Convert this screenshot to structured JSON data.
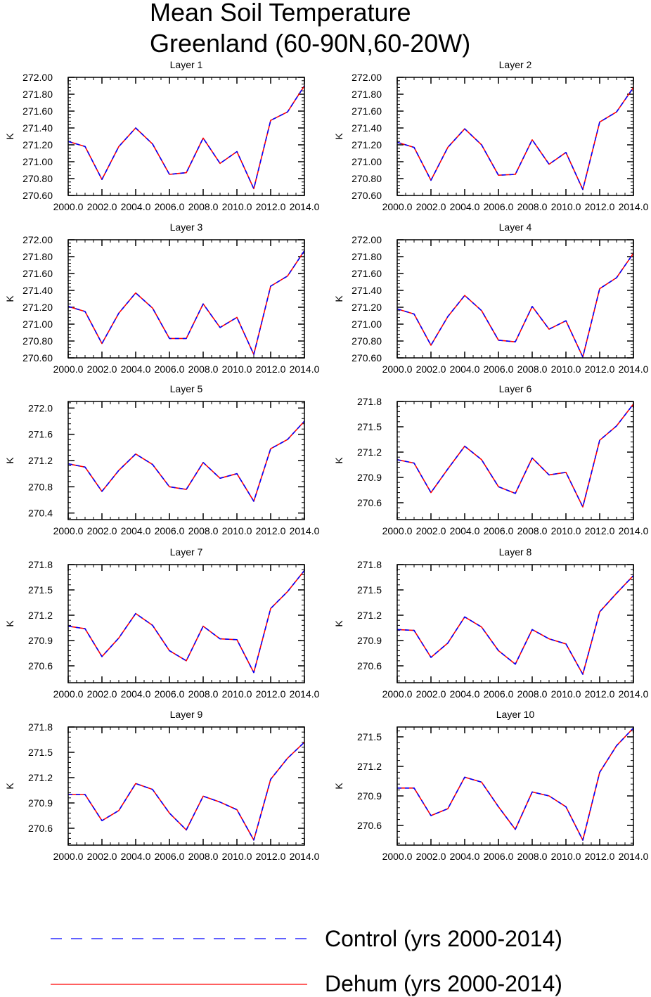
{
  "title_lines": [
    "Mean Soil Temperature",
    "Greenland (60-90N,60-20W)"
  ],
  "legend": [
    {
      "label": "Control (yrs 2000-2014)",
      "color": "#0000ff",
      "dash": true
    },
    {
      "label": "Dehum (yrs 2000-2014)",
      "color": "#ff0000",
      "dash": false
    }
  ],
  "chart_data": [
    {
      "type": "line",
      "title": "Layer 1",
      "ylabel": "K",
      "xlim": [
        2000,
        2014
      ],
      "ylim": [
        270.6,
        272.0
      ],
      "xticks": [
        "2000.0",
        "2002.0",
        "2004.0",
        "2006.0",
        "2008.0",
        "2010.0",
        "2012.0",
        "2014.0"
      ],
      "yticks": [
        "270.60",
        "270.80",
        "271.00",
        "271.20",
        "271.40",
        "271.60",
        "271.80",
        "272.00"
      ],
      "x": [
        2000,
        2001,
        2002,
        2003,
        2004,
        2005,
        2006,
        2007,
        2008,
        2009,
        2010,
        2011,
        2012,
        2013,
        2014
      ],
      "series": [
        {
          "name": "Control (yrs 2000-2014)",
          "values": [
            271.24,
            271.18,
            270.79,
            271.18,
            271.4,
            271.21,
            270.85,
            270.87,
            271.28,
            270.98,
            271.12,
            270.68,
            271.49,
            271.59,
            271.9
          ]
        },
        {
          "name": "Dehum (yrs 2000-2014)",
          "values": [
            271.24,
            271.18,
            270.79,
            271.18,
            271.4,
            271.21,
            270.85,
            270.87,
            271.28,
            270.98,
            271.12,
            270.68,
            271.49,
            271.59,
            271.9
          ]
        }
      ]
    },
    {
      "type": "line",
      "title": "Layer 2",
      "ylabel": "K",
      "xlim": [
        2000,
        2014
      ],
      "ylim": [
        270.6,
        272.0
      ],
      "xticks": [
        "2000.0",
        "2002.0",
        "2004.0",
        "2006.0",
        "2008.0",
        "2010.0",
        "2012.0",
        "2014.0"
      ],
      "yticks": [
        "270.60",
        "270.80",
        "271.00",
        "271.20",
        "271.40",
        "271.60",
        "271.80",
        "272.00"
      ],
      "x": [
        2000,
        2001,
        2002,
        2003,
        2004,
        2005,
        2006,
        2007,
        2008,
        2009,
        2010,
        2011,
        2012,
        2013,
        2014
      ],
      "series": [
        {
          "name": "Control (yrs 2000-2014)",
          "values": [
            271.23,
            271.17,
            270.78,
            271.17,
            271.39,
            271.2,
            270.84,
            270.85,
            271.26,
            270.97,
            271.11,
            270.67,
            271.47,
            271.59,
            271.88
          ]
        },
        {
          "name": "Dehum (yrs 2000-2014)",
          "values": [
            271.23,
            271.17,
            270.78,
            271.17,
            271.39,
            271.2,
            270.84,
            270.85,
            271.26,
            270.97,
            271.11,
            270.67,
            271.47,
            271.59,
            271.88
          ]
        }
      ]
    },
    {
      "type": "line",
      "title": "Layer 3",
      "ylabel": "K",
      "xlim": [
        2000,
        2014
      ],
      "ylim": [
        270.6,
        272.0
      ],
      "xticks": [
        "2000.0",
        "2002.0",
        "2004.0",
        "2006.0",
        "2008.0",
        "2010.0",
        "2012.0",
        "2014.0"
      ],
      "yticks": [
        "270.60",
        "270.80",
        "271.00",
        "271.20",
        "271.40",
        "271.60",
        "271.80",
        "272.00"
      ],
      "x": [
        2000,
        2001,
        2002,
        2003,
        2004,
        2005,
        2006,
        2007,
        2008,
        2009,
        2010,
        2011,
        2012,
        2013,
        2014
      ],
      "series": [
        {
          "name": "Control (yrs 2000-2014)",
          "values": [
            271.21,
            271.15,
            270.77,
            271.13,
            271.37,
            271.19,
            270.83,
            270.83,
            271.24,
            270.96,
            271.08,
            270.64,
            271.45,
            271.57,
            271.87
          ]
        },
        {
          "name": "Dehum (yrs 2000-2014)",
          "values": [
            271.21,
            271.15,
            270.77,
            271.13,
            271.37,
            271.19,
            270.83,
            270.83,
            271.24,
            270.96,
            271.08,
            270.64,
            271.45,
            271.57,
            271.87
          ]
        }
      ]
    },
    {
      "type": "line",
      "title": "Layer 4",
      "ylabel": "K",
      "xlim": [
        2000,
        2014
      ],
      "ylim": [
        270.6,
        272.0
      ],
      "xticks": [
        "2000.0",
        "2002.0",
        "2004.0",
        "2006.0",
        "2008.0",
        "2010.0",
        "2012.0",
        "2014.0"
      ],
      "yticks": [
        "270.60",
        "270.80",
        "271.00",
        "271.20",
        "271.40",
        "271.60",
        "271.80",
        "272.00"
      ],
      "x": [
        2000,
        2001,
        2002,
        2003,
        2004,
        2005,
        2006,
        2007,
        2008,
        2009,
        2010,
        2011,
        2012,
        2013,
        2014
      ],
      "series": [
        {
          "name": "Control (yrs 2000-2014)",
          "values": [
            271.18,
            271.12,
            270.75,
            271.09,
            271.34,
            271.16,
            270.81,
            270.79,
            271.21,
            270.94,
            271.04,
            270.61,
            271.42,
            271.55,
            271.84
          ]
        },
        {
          "name": "Dehum (yrs 2000-2014)",
          "values": [
            271.18,
            271.12,
            270.75,
            271.09,
            271.34,
            271.16,
            270.81,
            270.79,
            271.21,
            270.94,
            271.04,
            270.61,
            271.42,
            271.55,
            271.84
          ]
        }
      ]
    },
    {
      "type": "line",
      "title": "Layer 5",
      "ylabel": "K",
      "xlim": [
        2000,
        2014
      ],
      "ylim": [
        270.3,
        272.1
      ],
      "xticks": [
        "2000.0",
        "2002.0",
        "2004.0",
        "2006.0",
        "2008.0",
        "2010.0",
        "2012.0",
        "2014.0"
      ],
      "yticks": [
        "270.4",
        "270.8",
        "271.2",
        "271.6",
        "272.0"
      ],
      "x": [
        2000,
        2001,
        2002,
        2003,
        2004,
        2005,
        2006,
        2007,
        2008,
        2009,
        2010,
        2011,
        2012,
        2013,
        2014
      ],
      "series": [
        {
          "name": "Control (yrs 2000-2014)",
          "values": [
            271.15,
            271.1,
            270.73,
            271.05,
            271.3,
            271.14,
            270.8,
            270.76,
            271.17,
            270.93,
            271.0,
            270.58,
            271.38,
            271.52,
            271.8
          ]
        },
        {
          "name": "Dehum (yrs 2000-2014)",
          "values": [
            271.15,
            271.1,
            270.73,
            271.05,
            271.3,
            271.14,
            270.8,
            270.76,
            271.17,
            270.93,
            271.0,
            270.58,
            271.38,
            271.52,
            271.8
          ]
        }
      ]
    },
    {
      "type": "line",
      "title": "Layer 6",
      "ylabel": "K",
      "xlim": [
        2000,
        2014
      ],
      "ylim": [
        270.4,
        271.8
      ],
      "xticks": [
        "2000.0",
        "2002.0",
        "2004.0",
        "2006.0",
        "2008.0",
        "2010.0",
        "2012.0",
        "2014.0"
      ],
      "yticks": [
        "270.6",
        "270.9",
        "271.2",
        "271.5",
        "271.8"
      ],
      "x": [
        2000,
        2001,
        2002,
        2003,
        2004,
        2005,
        2006,
        2007,
        2008,
        2009,
        2010,
        2011,
        2012,
        2013,
        2014
      ],
      "series": [
        {
          "name": "Control (yrs 2000-2014)",
          "values": [
            271.11,
            271.07,
            270.72,
            271.0,
            271.27,
            271.11,
            270.79,
            270.71,
            271.13,
            270.93,
            270.96,
            270.55,
            271.34,
            271.51,
            271.77
          ]
        },
        {
          "name": "Dehum (yrs 2000-2014)",
          "values": [
            271.11,
            271.07,
            270.72,
            271.0,
            271.27,
            271.11,
            270.79,
            270.71,
            271.13,
            270.93,
            270.96,
            270.55,
            271.34,
            271.51,
            271.77
          ]
        }
      ]
    },
    {
      "type": "line",
      "title": "Layer 7",
      "ylabel": "K",
      "xlim": [
        2000,
        2014
      ],
      "ylim": [
        270.4,
        271.8
      ],
      "xticks": [
        "2000.0",
        "2002.0",
        "2004.0",
        "2006.0",
        "2008.0",
        "2010.0",
        "2012.0",
        "2014.0"
      ],
      "yticks": [
        "270.6",
        "270.9",
        "271.2",
        "271.5",
        "271.8"
      ],
      "x": [
        2000,
        2001,
        2002,
        2003,
        2004,
        2005,
        2006,
        2007,
        2008,
        2009,
        2010,
        2011,
        2012,
        2013,
        2014
      ],
      "series": [
        {
          "name": "Control (yrs 2000-2014)",
          "values": [
            271.07,
            271.04,
            270.71,
            270.93,
            271.22,
            271.08,
            270.78,
            270.66,
            271.07,
            270.92,
            270.91,
            270.52,
            271.28,
            271.48,
            271.73
          ]
        },
        {
          "name": "Dehum (yrs 2000-2014)",
          "values": [
            271.07,
            271.04,
            270.71,
            270.93,
            271.22,
            271.08,
            270.78,
            270.66,
            271.07,
            270.92,
            270.91,
            270.52,
            271.28,
            271.48,
            271.73
          ]
        }
      ]
    },
    {
      "type": "line",
      "title": "Layer 8",
      "ylabel": "K",
      "xlim": [
        2000,
        2014
      ],
      "ylim": [
        270.4,
        271.8
      ],
      "xticks": [
        "2000.0",
        "2002.0",
        "2004.0",
        "2006.0",
        "2008.0",
        "2010.0",
        "2012.0",
        "2014.0"
      ],
      "yticks": [
        "270.6",
        "270.9",
        "271.2",
        "271.5",
        "271.8"
      ],
      "x": [
        2000,
        2001,
        2002,
        2003,
        2004,
        2005,
        2006,
        2007,
        2008,
        2009,
        2010,
        2011,
        2012,
        2013,
        2014
      ],
      "series": [
        {
          "name": "Control (yrs 2000-2014)",
          "values": [
            271.03,
            271.02,
            270.7,
            270.87,
            271.18,
            271.06,
            270.78,
            270.62,
            271.03,
            270.92,
            270.86,
            270.5,
            271.24,
            271.46,
            271.67
          ]
        },
        {
          "name": "Dehum (yrs 2000-2014)",
          "values": [
            271.03,
            271.02,
            270.7,
            270.87,
            271.18,
            271.06,
            270.78,
            270.62,
            271.03,
            270.92,
            270.86,
            270.5,
            271.24,
            271.46,
            271.67
          ]
        }
      ]
    },
    {
      "type": "line",
      "title": "Layer 9",
      "ylabel": "K",
      "xlim": [
        2000,
        2014
      ],
      "ylim": [
        270.4,
        271.8
      ],
      "xticks": [
        "2000.0",
        "2002.0",
        "2004.0",
        "2006.0",
        "2008.0",
        "2010.0",
        "2012.0",
        "2014.0"
      ],
      "yticks": [
        "270.6",
        "270.9",
        "271.2",
        "271.5",
        "271.8"
      ],
      "x": [
        2000,
        2001,
        2002,
        2003,
        2004,
        2005,
        2006,
        2007,
        2008,
        2009,
        2010,
        2011,
        2012,
        2013,
        2014
      ],
      "series": [
        {
          "name": "Control (yrs 2000-2014)",
          "values": [
            271.0,
            271.0,
            270.69,
            270.81,
            271.13,
            271.06,
            270.78,
            270.58,
            270.98,
            270.91,
            270.82,
            270.46,
            271.18,
            271.43,
            271.62
          ]
        },
        {
          "name": "Dehum (yrs 2000-2014)",
          "values": [
            271.0,
            271.0,
            270.69,
            270.81,
            271.13,
            271.06,
            270.78,
            270.58,
            270.98,
            270.91,
            270.82,
            270.46,
            271.18,
            271.43,
            271.62
          ]
        }
      ]
    },
    {
      "type": "line",
      "title": "Layer 10",
      "ylabel": "K",
      "xlim": [
        2000,
        2014
      ],
      "ylim": [
        270.4,
        271.6
      ],
      "xticks": [
        "2000.0",
        "2002.0",
        "2004.0",
        "2006.0",
        "2008.0",
        "2010.0",
        "2012.0",
        "2014.0"
      ],
      "yticks": [
        "270.6",
        "270.9",
        "271.2",
        "271.5"
      ],
      "x": [
        2000,
        2001,
        2002,
        2003,
        2004,
        2005,
        2006,
        2007,
        2008,
        2009,
        2010,
        2011,
        2012,
        2013,
        2014
      ],
      "series": [
        {
          "name": "Control (yrs 2000-2014)",
          "values": [
            270.98,
            270.98,
            270.7,
            270.77,
            271.09,
            271.04,
            270.79,
            270.56,
            270.94,
            270.9,
            270.79,
            270.45,
            271.14,
            271.41,
            271.59
          ]
        },
        {
          "name": "Dehum (yrs 2000-2014)",
          "values": [
            270.98,
            270.98,
            270.7,
            270.77,
            271.09,
            271.04,
            270.79,
            270.56,
            270.94,
            270.9,
            270.79,
            270.45,
            271.14,
            271.41,
            271.59
          ]
        }
      ]
    }
  ]
}
